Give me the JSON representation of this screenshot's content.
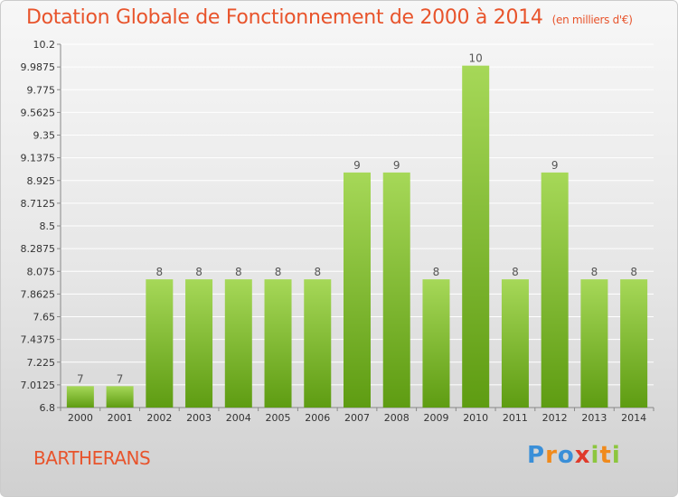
{
  "header": {
    "title": "Dotation Globale de Fonctionnement de 2000 à 2014",
    "subtitle": "(en milliers d'€)"
  },
  "footer": {
    "commune": "BARTHERANS",
    "logo_text": "Proxiti"
  },
  "colors": {
    "title": "#e8542c",
    "bar_top": "#a6d858",
    "bar_bottom": "#5e9c12"
  },
  "chart_data": {
    "type": "bar",
    "title": "Dotation Globale de Fonctionnement de 2000 à 2014",
    "subtitle": "(en milliers d'€)",
    "categories": [
      "2000",
      "2001",
      "2002",
      "2003",
      "2004",
      "2005",
      "2006",
      "2007",
      "2008",
      "2009",
      "2010",
      "2011",
      "2012",
      "2013",
      "2014"
    ],
    "values": [
      7,
      7,
      8,
      8,
      8,
      8,
      8,
      9,
      9,
      8,
      10,
      8,
      9,
      8,
      8
    ],
    "ylim": [
      6.8,
      10.2
    ],
    "yticks": [
      "6.8",
      "7.0125",
      "7.225",
      "7.4375",
      "7.65",
      "7.8625",
      "8.075",
      "8.2875",
      "8.5",
      "8.7125",
      "8.925",
      "9.1375",
      "9.35",
      "9.5625",
      "9.775",
      "9.9875",
      "10.2"
    ],
    "grid": true,
    "xlabel": "",
    "ylabel": ""
  }
}
